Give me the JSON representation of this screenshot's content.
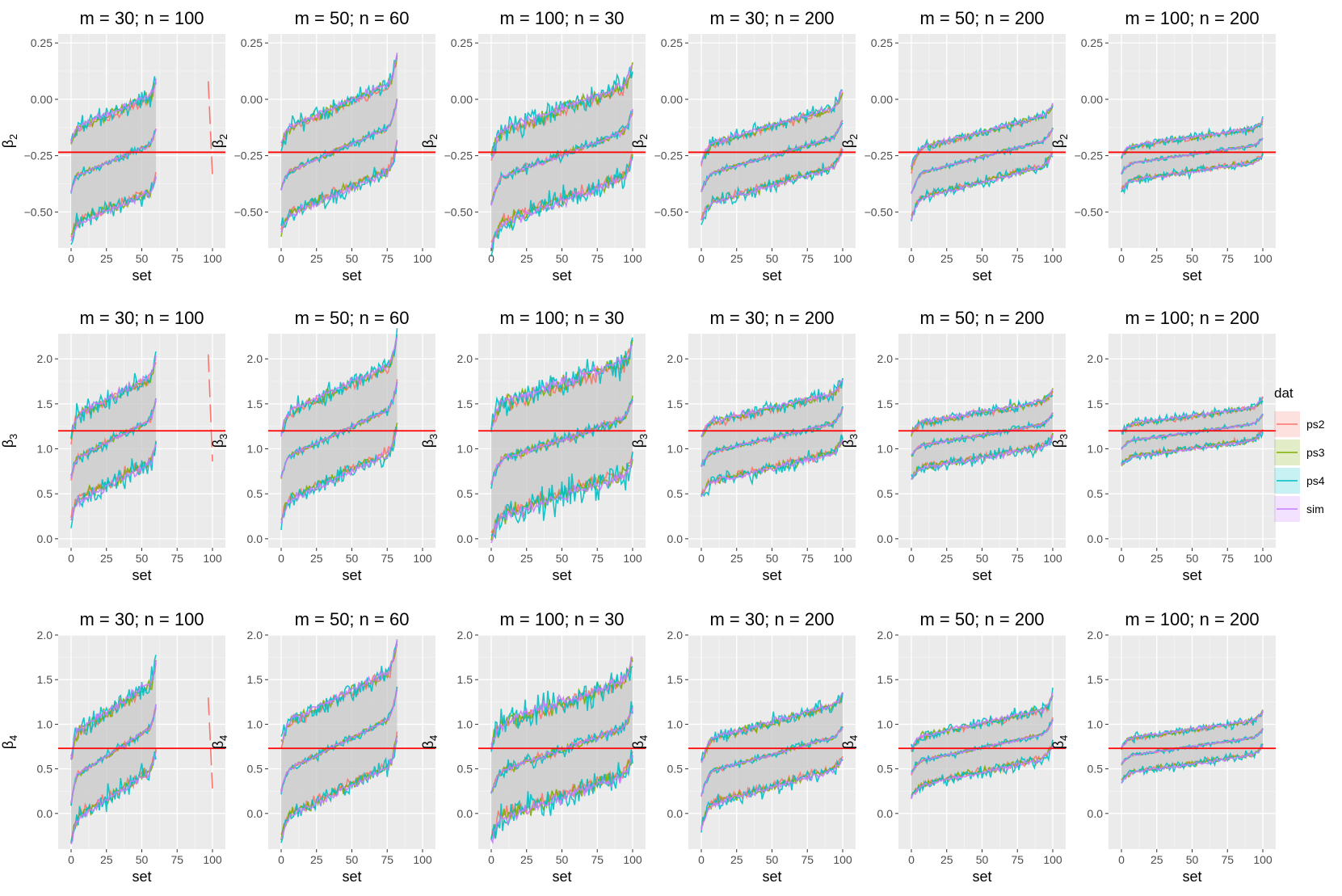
{
  "chart_data": {
    "type": "line",
    "xlabel": "set",
    "xlim": [
      0,
      100
    ],
    "x_ticks": [
      0,
      25,
      50,
      75,
      100
    ],
    "reference_line_color": "#ff0000",
    "ribbon_color": "#c8c8c8",
    "legend": {
      "title": "dat",
      "position": "right",
      "entries": [
        {
          "name": "ps2",
          "color": "#f8766d"
        },
        {
          "name": "ps3",
          "color": "#7cae00"
        },
        {
          "name": "ps4",
          "color": "#00bfc4"
        },
        {
          "name": "sim",
          "color": "#c77cff"
        }
      ]
    },
    "rows": [
      {
        "parameter": "β2",
        "ylabel_base": "β",
        "ylabel_sub": "2",
        "ylim": [
          -0.66,
          0.29
        ],
        "y_ticks": [
          0.25,
          0,
          -0.25,
          -0.5
        ],
        "y_tick_labels": [
          "0.25",
          "0.00",
          "−0.25",
          "−0.50"
        ],
        "true_value": -0.235,
        "panels": [
          {
            "title": "m = 30; n = 100",
            "n_sets": 60,
            "mean_start": -0.41,
            "mean_mid": -0.27,
            "mean_end": -0.13,
            "half_width": 0.21,
            "noise": 0.02,
            "tail_x": [
              97,
              100
            ],
            "tail_y": [
              0.08,
              -0.34
            ]
          },
          {
            "title": "m = 50; n = 60",
            "n_sets": 82,
            "mean_start": -0.4,
            "mean_mid": -0.24,
            "mean_end": 0.0,
            "half_width": 0.19,
            "noise": 0.02
          },
          {
            "title": "m = 100; n = 30",
            "n_sets": 100,
            "mean_start": -0.46,
            "mean_mid": -0.24,
            "mean_end": -0.05,
            "half_width": 0.2,
            "noise": 0.025
          },
          {
            "title": "m = 30; n = 200",
            "n_sets": 100,
            "mean_start": -0.41,
            "mean_mid": -0.25,
            "mean_end": -0.09,
            "half_width": 0.13,
            "noise": 0.015
          },
          {
            "title": "m = 50; n = 200",
            "n_sets": 100,
            "mean_start": -0.42,
            "mean_mid": -0.24,
            "mean_end": -0.13,
            "half_width": 0.11,
            "noise": 0.012
          },
          {
            "title": "m = 100; n = 200",
            "n_sets": 100,
            "mean_start": -0.33,
            "mean_mid": -0.24,
            "mean_end": -0.17,
            "half_width": 0.075,
            "noise": 0.01
          }
        ]
      },
      {
        "parameter": "β3",
        "ylabel_base": "β",
        "ylabel_sub": "3",
        "ylim": [
          -0.1,
          2.28
        ],
        "y_ticks": [
          0,
          0.5,
          1,
          1.5,
          2
        ],
        "y_tick_labels": [
          "0.0",
          "0.5",
          "1.0",
          "1.5",
          "2.0"
        ],
        "true_value": 1.2,
        "panels": [
          {
            "title": "m = 30; n = 100",
            "n_sets": 60,
            "mean_start": 0.68,
            "mean_mid": 1.1,
            "mean_end": 1.55,
            "half_width": 0.47,
            "noise": 0.06,
            "tail_x": [
              97,
              100
            ],
            "tail_y": [
              2.05,
              0.86
            ]
          },
          {
            "title": "m = 50; n = 60",
            "n_sets": 82,
            "mean_start": 0.68,
            "mean_mid": 1.15,
            "mean_end": 1.75,
            "half_width": 0.48,
            "noise": 0.05
          },
          {
            "title": "m = 100; n = 30",
            "n_sets": 100,
            "mean_start": 0.62,
            "mean_mid": 1.12,
            "mean_end": 1.55,
            "half_width": 0.62,
            "noise": 0.08
          },
          {
            "title": "m = 30; n = 200",
            "n_sets": 100,
            "mean_start": 0.8,
            "mean_mid": 1.12,
            "mean_end": 1.45,
            "half_width": 0.33,
            "noise": 0.04
          },
          {
            "title": "m = 50; n = 200",
            "n_sets": 100,
            "mean_start": 0.92,
            "mean_mid": 1.15,
            "mean_end": 1.4,
            "half_width": 0.25,
            "noise": 0.035
          },
          {
            "title": "m = 100; n = 200",
            "n_sets": 100,
            "mean_start": 1.0,
            "mean_mid": 1.18,
            "mean_end": 1.38,
            "half_width": 0.18,
            "noise": 0.025
          }
        ]
      },
      {
        "parameter": "β4",
        "ylabel_base": "β",
        "ylabel_sub": "4",
        "ylim": [
          -0.4,
          2.0
        ],
        "y_ticks": [
          0,
          0.5,
          1,
          1.5,
          2
        ],
        "y_tick_labels": [
          "0.0",
          "0.5",
          "1.0",
          "1.5",
          "2.0"
        ],
        "true_value": 0.73,
        "panels": [
          {
            "title": "m = 30; n = 100",
            "n_sets": 60,
            "mean_start": 0.12,
            "mean_mid": 0.72,
            "mean_end": 1.2,
            "half_width": 0.48,
            "noise": 0.06,
            "tail_x": [
              97,
              100
            ],
            "tail_y": [
              1.3,
              0.28
            ]
          },
          {
            "title": "m = 50; n = 60",
            "n_sets": 82,
            "mean_start": 0.25,
            "mean_mid": 0.74,
            "mean_end": 1.4,
            "half_width": 0.52,
            "noise": 0.05
          },
          {
            "title": "m = 100; n = 30",
            "n_sets": 100,
            "mean_start": 0.22,
            "mean_mid": 0.72,
            "mean_end": 1.2,
            "half_width": 0.52,
            "noise": 0.08
          },
          {
            "title": "m = 30; n = 200",
            "n_sets": 100,
            "mean_start": 0.2,
            "mean_mid": 0.72,
            "mean_end": 0.98,
            "half_width": 0.36,
            "noise": 0.04
          },
          {
            "title": "m = 50; n = 200",
            "n_sets": 100,
            "mean_start": 0.45,
            "mean_mid": 0.73,
            "mean_end": 1.05,
            "half_width": 0.27,
            "noise": 0.035
          },
          {
            "title": "m = 100; n = 200",
            "n_sets": 100,
            "mean_start": 0.55,
            "mean_mid": 0.75,
            "mean_end": 0.95,
            "half_width": 0.19,
            "noise": 0.025
          }
        ]
      }
    ]
  }
}
